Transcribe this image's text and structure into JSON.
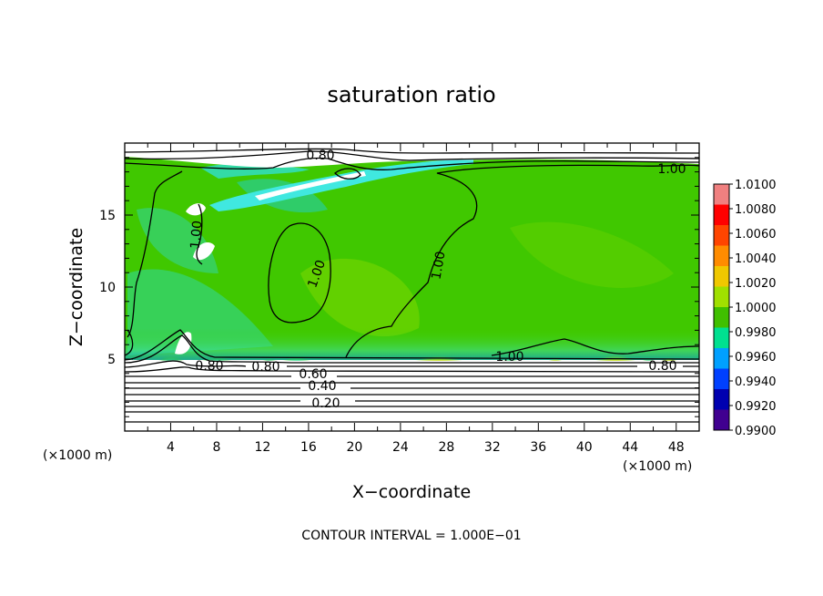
{
  "chart_data": {
    "type": "heatmap",
    "title": "saturation ratio",
    "xlabel": "X−coordinate",
    "ylabel": "Z−coordinate",
    "x_unit": "(×1000 m)",
    "z_unit": "(×1000 m)",
    "xlim": [
      0,
      50
    ],
    "ylim": [
      0,
      20
    ],
    "x_ticks": [
      4,
      8,
      12,
      16,
      20,
      24,
      28,
      32,
      36,
      40,
      44,
      48
    ],
    "y_ticks": [
      5,
      10,
      15
    ],
    "colorbar": {
      "min": 0.99,
      "max": 1.01,
      "ticks": [
        "1.0100",
        "1.0080",
        "1.0060",
        "1.0040",
        "1.0020",
        "1.0000",
        "0.9980",
        "0.9960",
        "0.9940",
        "0.9920",
        "0.9900"
      ],
      "colors": [
        "#f08080",
        "#ff0000",
        "#ff4500",
        "#ff8c00",
        "#f0c800",
        "#a0e000",
        "#40c000",
        "#00e090",
        "#00a0ff",
        "#0040ff",
        "#0000b0",
        "#400090"
      ]
    },
    "contour_labels": [
      "0.80",
      "1.00",
      "1.00",
      "1.00",
      "1.00",
      "0.80",
      "0.80",
      "0.60",
      "0.40",
      "0.20",
      "1.00",
      "0.80"
    ],
    "footer": "CONTOUR INTERVAL = 1.000E−01"
  }
}
